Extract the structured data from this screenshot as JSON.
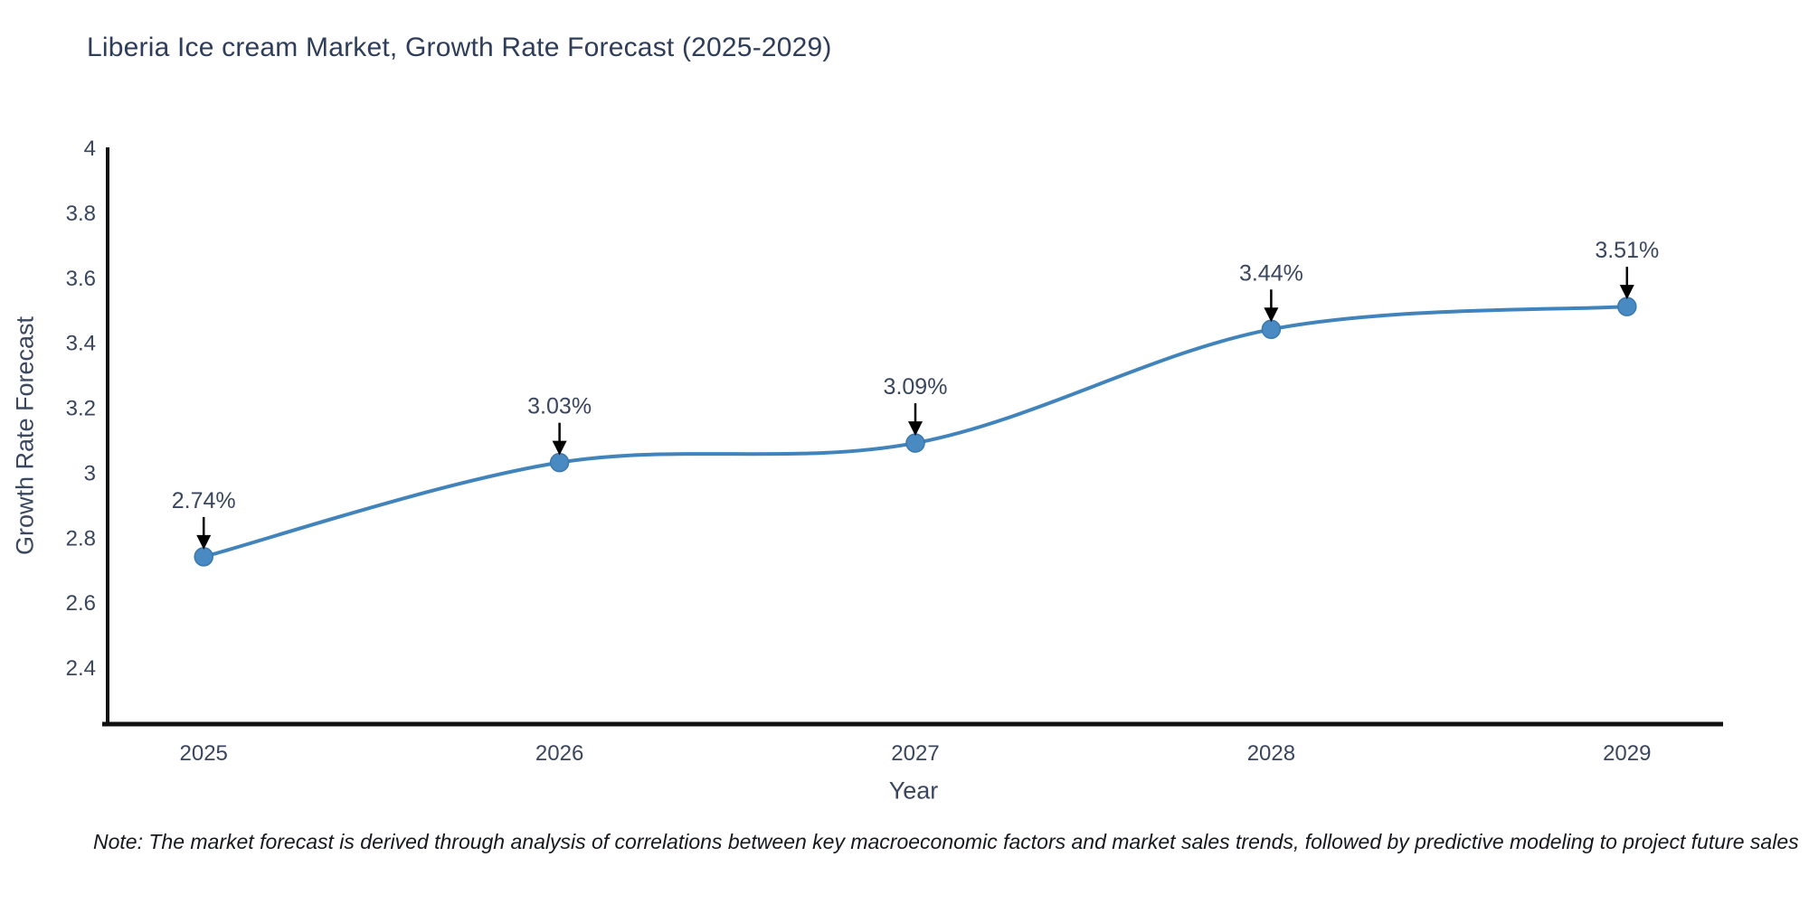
{
  "chart": {
    "title": "Liberia Ice cream Market, Growth Rate Forecast (2025-2029)",
    "note": "Note: The market forecast is derived through analysis of correlations between key macroeconomic factors and market sales trends, followed by predictive modeling to project future sales"
  },
  "chart_data": {
    "type": "line",
    "title": "Liberia Ice cream Market, Growth Rate Forecast (2025-2029)",
    "xlabel": "Year",
    "ylabel": "Growth Rate Forecast",
    "x": [
      2025,
      2026,
      2027,
      2028,
      2029
    ],
    "values": [
      2.74,
      3.03,
      3.09,
      3.44,
      3.51
    ],
    "point_labels": [
      "2.74%",
      "3.03%",
      "3.09%",
      "3.44%",
      "3.51%"
    ],
    "series_name": "Growth Rate Forecast",
    "line_shape": "spline",
    "grid": false,
    "legend_position": "none",
    "xticks": [
      "2025",
      "2026",
      "2027",
      "2028",
      "2029"
    ],
    "yticks": [
      "4",
      "3.8",
      "3.6",
      "3.4",
      "3.2",
      "3",
      "2.8",
      "2.6",
      "2.4"
    ],
    "ytick_values": [
      4,
      3.8,
      3.6,
      3.4,
      3.2,
      3,
      2.8,
      2.6,
      2.4
    ],
    "xlim": [
      2024.73,
      2029.27
    ],
    "ylim": [
      2.225,
      4.0
    ],
    "colors": {
      "line": "#4183bb",
      "marker": "#4a8ac2",
      "marker_edge": "#3a78ad",
      "axis_line": "#111111",
      "tick_text": "#39465e",
      "annotation_text": "#39465e",
      "annotation_arrow": "#000000",
      "title_text": "#2e3d59"
    }
  }
}
